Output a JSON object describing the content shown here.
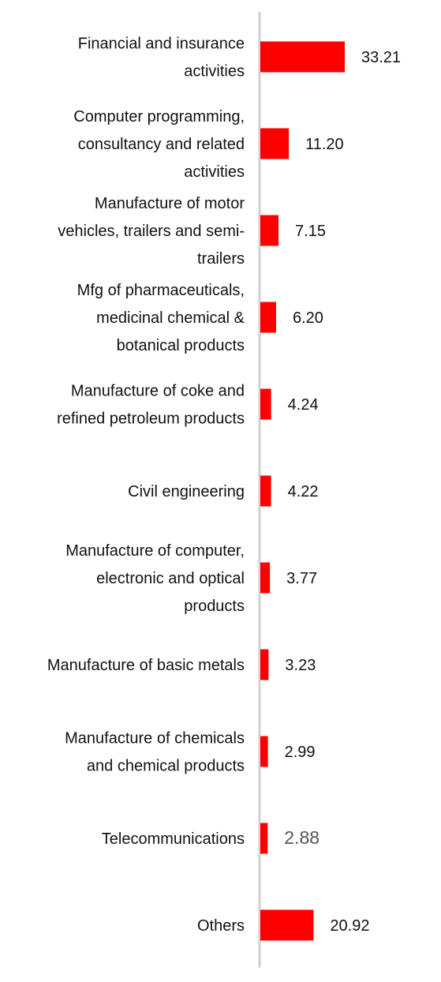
{
  "chart_data": {
    "type": "bar",
    "orientation": "horizontal",
    "categories": [
      [
        "Financial and insurance",
        "activities"
      ],
      [
        "Computer programming,",
        "consultancy and related",
        "activities"
      ],
      [
        "Manufacture of motor",
        "vehicles, trailers and semi-",
        "trailers"
      ],
      [
        "Mfg of pharmaceuticals,",
        "medicinal chemical &",
        "botanical products"
      ],
      [
        "Manufacture of coke and",
        "refined petroleum products"
      ],
      [
        "Civil engineering"
      ],
      [
        "Manufacture of computer,",
        "electronic and optical",
        "products"
      ],
      [
        "Manufacture of basic metals"
      ],
      [
        "Manufacture of chemicals",
        "and chemical products"
      ],
      [
        "Telecommunications"
      ],
      [
        "Others"
      ]
    ],
    "values": [
      33.21,
      11.2,
      7.15,
      6.2,
      4.24,
      4.22,
      3.77,
      3.23,
      2.99,
      2.88,
      20.92
    ],
    "value_labels": [
      "33.21",
      "11.20",
      "7.15",
      "6.20",
      "4.24",
      "4.22",
      "3.77",
      "3.23",
      "2.99",
      "2.88",
      "20.92"
    ],
    "title": "",
    "xlabel": "",
    "ylabel": "",
    "grid": false,
    "legend": "none",
    "colors": {
      "bar": "#ff0000",
      "axis": "#d0d0d0",
      "text": "#111111"
    }
  }
}
